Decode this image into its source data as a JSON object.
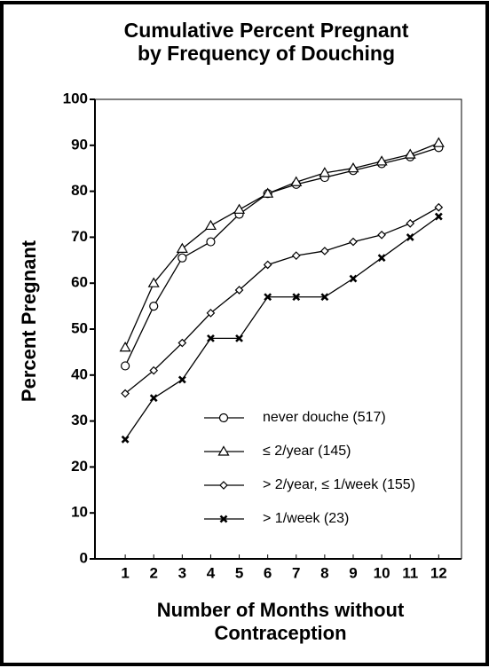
{
  "chart_data": {
    "type": "line",
    "title": [
      "Cumulative Percent Pregnant",
      "by Frequency of Douching"
    ],
    "x_label": [
      "Number of Months without",
      "Contraception"
    ],
    "y_label": "Percent Pregnant",
    "x": [
      1,
      2,
      3,
      4,
      5,
      6,
      7,
      8,
      9,
      10,
      11,
      12
    ],
    "xlim": [
      0,
      12.8
    ],
    "xticks": [
      1,
      2,
      3,
      4,
      5,
      6,
      7,
      8,
      9,
      10,
      11,
      12
    ],
    "ylim": [
      0,
      100
    ],
    "yticks": [
      0,
      10,
      20,
      30,
      40,
      50,
      60,
      70,
      80,
      90,
      100
    ],
    "series": [
      {
        "name": "never douche (517)",
        "color": "#000000",
        "marker": "circle",
        "values": [
          42,
          55,
          65.5,
          69,
          75,
          79.5,
          81.5,
          83,
          84.5,
          86,
          87.5,
          89.5
        ]
      },
      {
        "name": "≤ 2/year (145)",
        "color": "#000000",
        "marker": "triangle",
        "values": [
          46,
          60,
          67.5,
          72.5,
          76,
          79.5,
          82,
          84,
          85,
          86.5,
          88,
          90.5
        ]
      },
      {
        "name": "> 2/year, ≤ 1/week (155)",
        "color": "#000000",
        "marker": "diamond",
        "values": [
          36,
          41,
          47,
          53.5,
          58.5,
          64,
          66,
          67,
          69,
          70.5,
          73,
          76.5
        ]
      },
      {
        "name": "> 1/week (23)",
        "color": "#000000",
        "marker": "x",
        "values": [
          26,
          35,
          39,
          48,
          48,
          57,
          57,
          57,
          61,
          65.5,
          70,
          74.5
        ]
      }
    ]
  }
}
